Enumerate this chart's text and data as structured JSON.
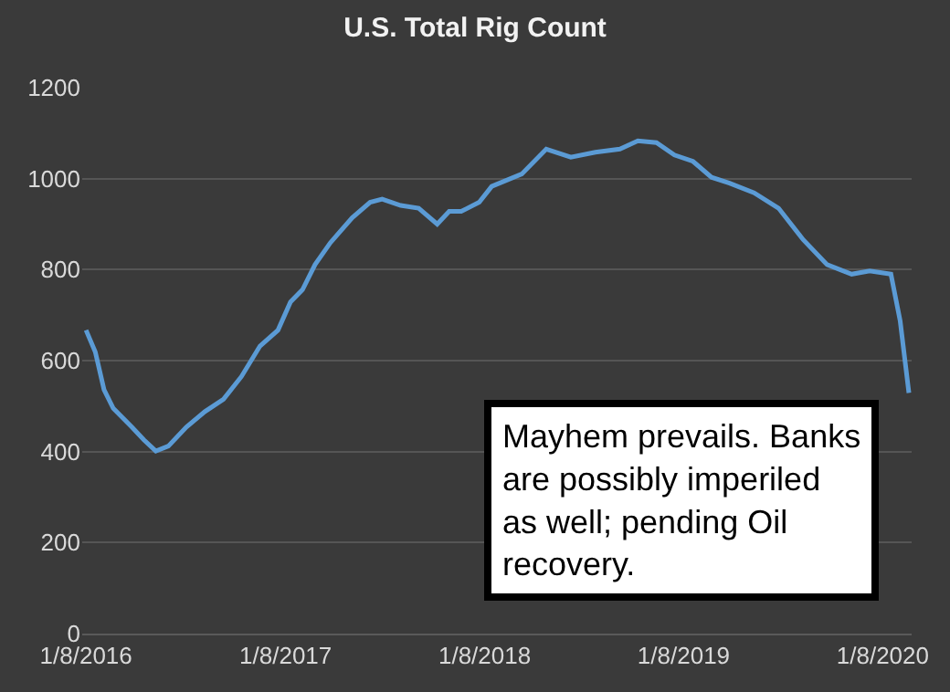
{
  "chart_data": {
    "type": "line",
    "title": "U.S. Total Rig Count",
    "x": [
      "2016-01-08",
      "2016-01-25",
      "2016-02-10",
      "2016-02-27",
      "2016-04-01",
      "2016-04-23",
      "2016-05-15",
      "2016-06-07",
      "2016-07-10",
      "2016-08-13",
      "2016-09-16",
      "2016-10-19",
      "2016-11-22",
      "2016-12-25",
      "2017-01-17",
      "2017-02-08",
      "2017-03-03",
      "2017-03-31",
      "2017-05-10",
      "2017-06-12",
      "2017-07-04",
      "2017-08-07",
      "2017-09-09",
      "2017-10-13",
      "2017-11-04",
      "2017-11-26",
      "2017-12-29",
      "2018-01-21",
      "2018-03-17",
      "2018-05-01",
      "2018-06-15",
      "2018-07-30",
      "2018-09-13",
      "2018-10-16",
      "2018-11-19",
      "2018-12-22",
      "2019-01-25",
      "2019-02-28",
      "2019-04-02",
      "2019-05-17",
      "2019-07-01",
      "2019-08-15",
      "2019-09-28",
      "2019-11-12",
      "2019-12-15",
      "2020-01-23",
      "2020-02-09",
      "2020-02-25"
    ],
    "series": [
      {
        "color": "#5b9bd5",
        "values": [
          667,
          619,
          536,
          495,
          454,
          426,
          401,
          412,
          454,
          488,
          515,
          565,
          632,
          667,
          729,
          756,
          811,
          859,
          914,
          948,
          955,
          941,
          935,
          900,
          928,
          928,
          948,
          983,
          1010,
          1065,
          1047,
          1058,
          1065,
          1083,
          1079,
          1052,
          1038,
          1003,
          990,
          969,
          935,
          866,
          811,
          790,
          797,
          790,
          687,
          529
        ]
      }
    ],
    "xlim": [
      "2016-01-01",
      "2020-03-01"
    ],
    "xticks": [
      {
        "value": "2016-01-08",
        "label": "1/8/2016"
      },
      {
        "value": "2017-01-08",
        "label": "1/8/2017"
      },
      {
        "value": "2018-01-08",
        "label": "1/8/2018"
      },
      {
        "value": "2019-01-08",
        "label": "1/8/2019"
      },
      {
        "value": "2020-01-08",
        "label": "1/8/2020"
      }
    ],
    "ylim": [
      0,
      1200
    ],
    "yticks": [
      0,
      200,
      400,
      600,
      800,
      1000,
      1200
    ],
    "grid": "y",
    "marker": "none",
    "line_style": "solid",
    "annotations": [
      "Mayhem prevails. Banks are possibly imperiled as well; pending Oil recovery."
    ]
  }
}
